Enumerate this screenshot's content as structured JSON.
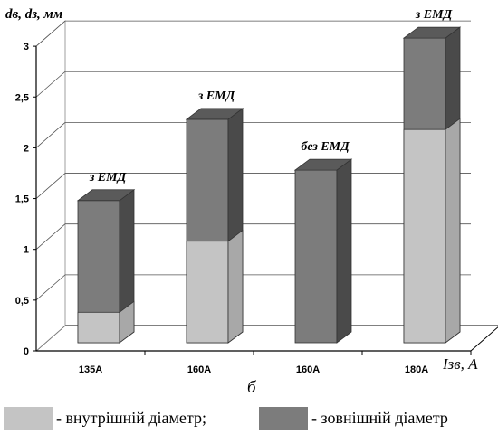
{
  "chart_data": {
    "type": "bar",
    "style": "3d-overlapping-columns",
    "ylabel": "dв, dз, мм",
    "xlabel": "Iзв, А",
    "caption": "б",
    "ylim": [
      0,
      3
    ],
    "yticks": [
      "0",
      "0,5",
      "1",
      "1,5",
      "2",
      "2,5",
      "3"
    ],
    "categories": [
      "135А",
      "160А",
      "160А",
      "180А"
    ],
    "annotations": [
      "з ЕМД",
      "з ЕМД",
      "без ЕМД",
      "з ЕМД"
    ],
    "series": [
      {
        "name": "внутрішній діаметр",
        "values": [
          0.3,
          1.0,
          0.0,
          2.1
        ]
      },
      {
        "name": "зовнішній діаметр",
        "values": [
          1.4,
          2.2,
          1.7,
          3.0
        ]
      }
    ],
    "grid": true,
    "colors": {
      "inner": "#c4c4c4",
      "outer": "#7c7c7c",
      "outer_top": "#5a5a5a",
      "outer_side": "#4a4a4a",
      "inner_side": "#a8a8a8",
      "inner_top": "#b4b4b4"
    }
  },
  "legend": {
    "inner_text": "- внутрішній діаметр;",
    "outer_text": "- зовнішній діаметр"
  }
}
